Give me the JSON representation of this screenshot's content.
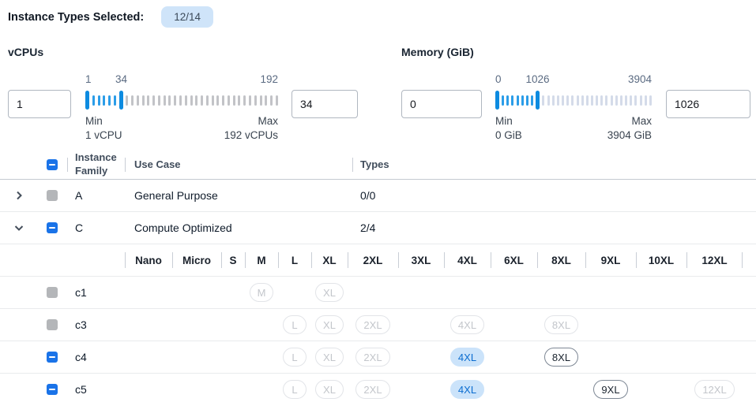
{
  "header": {
    "label": "Instance Types Selected:",
    "badge": "12/14"
  },
  "filters": {
    "vcpus": {
      "title": "vCPUs",
      "min_input": "1",
      "max_input": "34",
      "scale": {
        "start": "1",
        "current": "34",
        "end": "192"
      },
      "min_label": "Min",
      "min_value": "1 vCPU",
      "max_label": "Max",
      "max_value": "192 vCPUs",
      "slider": {
        "active_ticks": 5,
        "inactive_ticks": 29
      }
    },
    "memory": {
      "title": "Memory (GiB)",
      "min_input": "0",
      "max_input": "1026",
      "scale": {
        "start": "0",
        "current": "1026",
        "end": "3904"
      },
      "min_label": "Min",
      "min_value": "0 GiB",
      "max_label": "Max",
      "max_value": "3904 GiB",
      "slider": {
        "active_ticks": 7,
        "inactive_ticks": 23
      }
    }
  },
  "table": {
    "columns": {
      "family": "Instance Family",
      "use_case": "Use Case",
      "types": "Types"
    },
    "header_checkbox": "indeterminate",
    "family_rows": [
      {
        "expander": "collapsed",
        "checkbox": "disabled",
        "family": "A",
        "use_case": "General Purpose",
        "types": "0/0"
      },
      {
        "expander": "expanded",
        "checkbox": "indeterminate",
        "family": "C",
        "use_case": "Compute Optimized",
        "types": "2/4"
      }
    ],
    "size_columns": [
      "Nano",
      "Micro",
      "S",
      "M",
      "L",
      "XL",
      "2XL",
      "3XL",
      "4XL",
      "6XL",
      "8XL",
      "9XL",
      "10XL",
      "12XL"
    ],
    "instance_rows": [
      {
        "checkbox": "disabled",
        "name": "c1",
        "sizes": {
          "M": "disabled",
          "XL": "disabled"
        }
      },
      {
        "checkbox": "disabled",
        "name": "c3",
        "sizes": {
          "L": "disabled",
          "XL": "disabled",
          "2XL": "disabled",
          "4XL": "disabled",
          "8XL": "disabled"
        }
      },
      {
        "checkbox": "indeterminate",
        "name": "c4",
        "sizes": {
          "L": "disabled",
          "XL": "disabled",
          "2XL": "disabled",
          "4XL": "selected",
          "8XL": "enabled"
        }
      },
      {
        "checkbox": "indeterminate",
        "name": "c5",
        "sizes": {
          "L": "disabled",
          "XL": "disabled",
          "2XL": "disabled",
          "4XL": "selected",
          "9XL": "enabled",
          "12XL": "disabled"
        }
      }
    ]
  },
  "icons": {
    "collapsed": "chevron-right-icon",
    "expanded": "chevron-down-icon",
    "indeterminate_checkbox": "minus-checkbox-icon"
  },
  "colors": {
    "accent_blue": "#1a73e8",
    "slider_handle": "#0d8be0",
    "slider_tick_active": "#2b9de8",
    "slider_tick_inactive_vcpu": "#c2c3c7",
    "slider_tick_inactive_memory": "#d4dbe9",
    "badge_bg": "#cfe4f9",
    "selected_pill_bg": "#cbe3fa",
    "selected_pill_text": "#0b6dd0",
    "disabled_checkbox": "#b4b6b9"
  }
}
